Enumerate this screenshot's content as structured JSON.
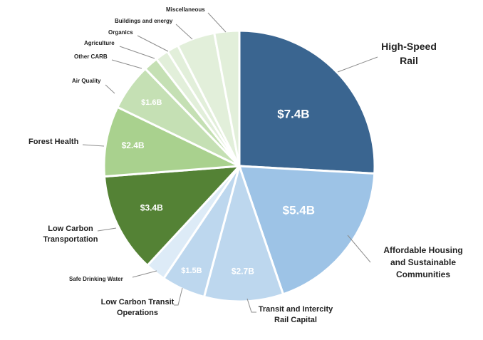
{
  "chart_data": {
    "type": "pie",
    "title": "",
    "units": "billions of dollars",
    "colors": {
      "High-Speed Rail": "#3a6590",
      "Affordable Housing and Sustainable Communities": "#9dc3e6",
      "Transit and Intercity Rail Capital": "#bdd7ee",
      "Low Carbon Transit Operations": "#bdd7ee",
      "Safe Drinking Water": "#ddebf7",
      "Low Carbon Transportation": "#548235",
      "Forest Health": "#a9d18e",
      "Air Quality": "#c5e0b4",
      "Other CARB": "#c5e0b4",
      "Agriculture": "#e2efda",
      "Organics": "#e2efda",
      "Buildings and energy": "#e2efda",
      "Miscellaneous": "#e2efda"
    },
    "slices": [
      {
        "key": "hsr",
        "label_lines": [
          "High-Speed",
          "Rail"
        ],
        "value": 7.4,
        "value_label": "$7.4B"
      },
      {
        "key": "ahsc",
        "label_lines": [
          "Affordable Housing",
          "and Sustainable",
          "Communities"
        ],
        "value": 5.4,
        "value_label": "$5.4B"
      },
      {
        "key": "tirc",
        "label_lines": [
          "Transit and Intercity",
          "Rail Capital"
        ],
        "value": 2.7,
        "value_label": "$2.7B"
      },
      {
        "key": "lcto",
        "label_lines": [
          "Low Carbon Transit",
          "Operations"
        ],
        "value": 1.5,
        "value_label": "$1.5B"
      },
      {
        "key": "sdw",
        "label_lines": [
          "Safe Drinking Water"
        ],
        "value": 0.7,
        "value_label": ""
      },
      {
        "key": "lct",
        "label_lines": [
          "Low Carbon",
          "Transportation"
        ],
        "value": 3.4,
        "value_label": "$3.4B"
      },
      {
        "key": "fh",
        "label_lines": [
          "Forest Health"
        ],
        "value": 2.4,
        "value_label": "$2.4B"
      },
      {
        "key": "aq",
        "label_lines": [
          "Air Quality"
        ],
        "value": 1.6,
        "value_label": "$1.6B"
      },
      {
        "key": "carb",
        "label_lines": [
          "Other CARB"
        ],
        "value": 0.5,
        "value_label": ""
      },
      {
        "key": "ag",
        "label_lines": [
          "Agriculture"
        ],
        "value": 0.45,
        "value_label": ""
      },
      {
        "key": "org",
        "label_lines": [
          "Organics"
        ],
        "value": 0.4,
        "value_label": ""
      },
      {
        "key": "bld",
        "label_lines": [
          "Buildings and energy"
        ],
        "value": 1.3,
        "value_label": ""
      },
      {
        "key": "misc",
        "label_lines": [
          "Miscellaneous"
        ],
        "value": 0.85,
        "value_label": ""
      }
    ]
  }
}
